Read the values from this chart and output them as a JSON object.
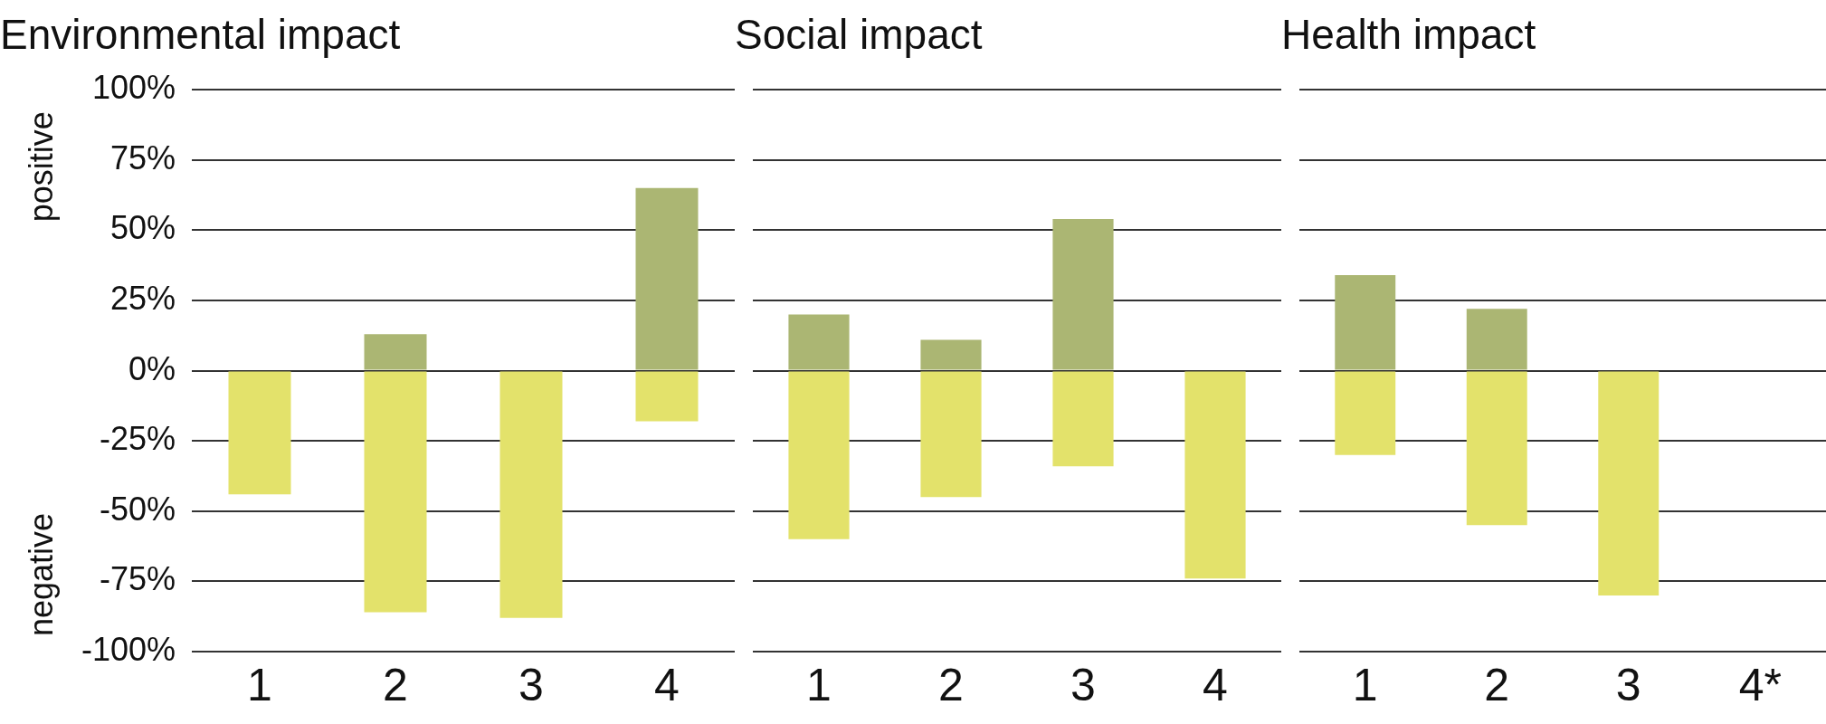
{
  "chart_data": [
    {
      "type": "bar",
      "title": "Environmental impact",
      "categories": [
        "1",
        "2",
        "3",
        "4"
      ],
      "stacked": true,
      "grid": "y",
      "legend": false,
      "series": [
        {
          "color": "#abb673",
          "values": [
            null,
            13,
            null,
            65
          ]
        },
        {
          "color": "#e3e26b",
          "values": [
            -44,
            -86,
            -88,
            -18
          ]
        }
      ],
      "ylim": [
        -100,
        100
      ],
      "yticks": [
        {
          "value": -100,
          "label": "-100%"
        },
        {
          "value": -75,
          "label": "-75%"
        },
        {
          "value": -50,
          "label": "-50%"
        },
        {
          "value": -25,
          "label": "-25%"
        },
        {
          "value": 0,
          "label": "0%"
        },
        {
          "value": 25,
          "label": "25%"
        },
        {
          "value": 50,
          "label": "50%"
        },
        {
          "value": 75,
          "label": "75%"
        },
        {
          "value": 100,
          "label": "100%"
        }
      ],
      "annotations": [
        "positive",
        "negative"
      ]
    },
    {
      "type": "bar",
      "title": "Social impact",
      "categories": [
        "1",
        "2",
        "3",
        "4"
      ],
      "stacked": true,
      "grid": "y",
      "legend": false,
      "tick_labels": "x",
      "series": [
        {
          "color": "#abb673",
          "values": [
            20,
            11,
            54,
            null
          ]
        },
        {
          "color": "#e3e26b",
          "values": [
            -60,
            -45,
            -34,
            -74
          ]
        }
      ],
      "ylim": [
        -100,
        100
      ],
      "yticks": [
        -100,
        -75,
        -50,
        -25,
        0,
        25,
        50,
        75,
        100
      ]
    },
    {
      "type": "bar",
      "title": "Health impact",
      "categories": [
        "1",
        "2",
        "3",
        "4*"
      ],
      "stacked": true,
      "grid": "y",
      "legend": false,
      "tick_labels": "x",
      "series": [
        {
          "color": "#abb673",
          "values": [
            34,
            22,
            null,
            null
          ]
        },
        {
          "color": "#e3e26b",
          "values": [
            -30,
            -55,
            -80,
            null
          ]
        }
      ],
      "ylim": [
        -100,
        100
      ],
      "yticks": [
        -100,
        -75,
        -50,
        -25,
        0,
        25,
        50,
        75,
        100
      ]
    }
  ]
}
